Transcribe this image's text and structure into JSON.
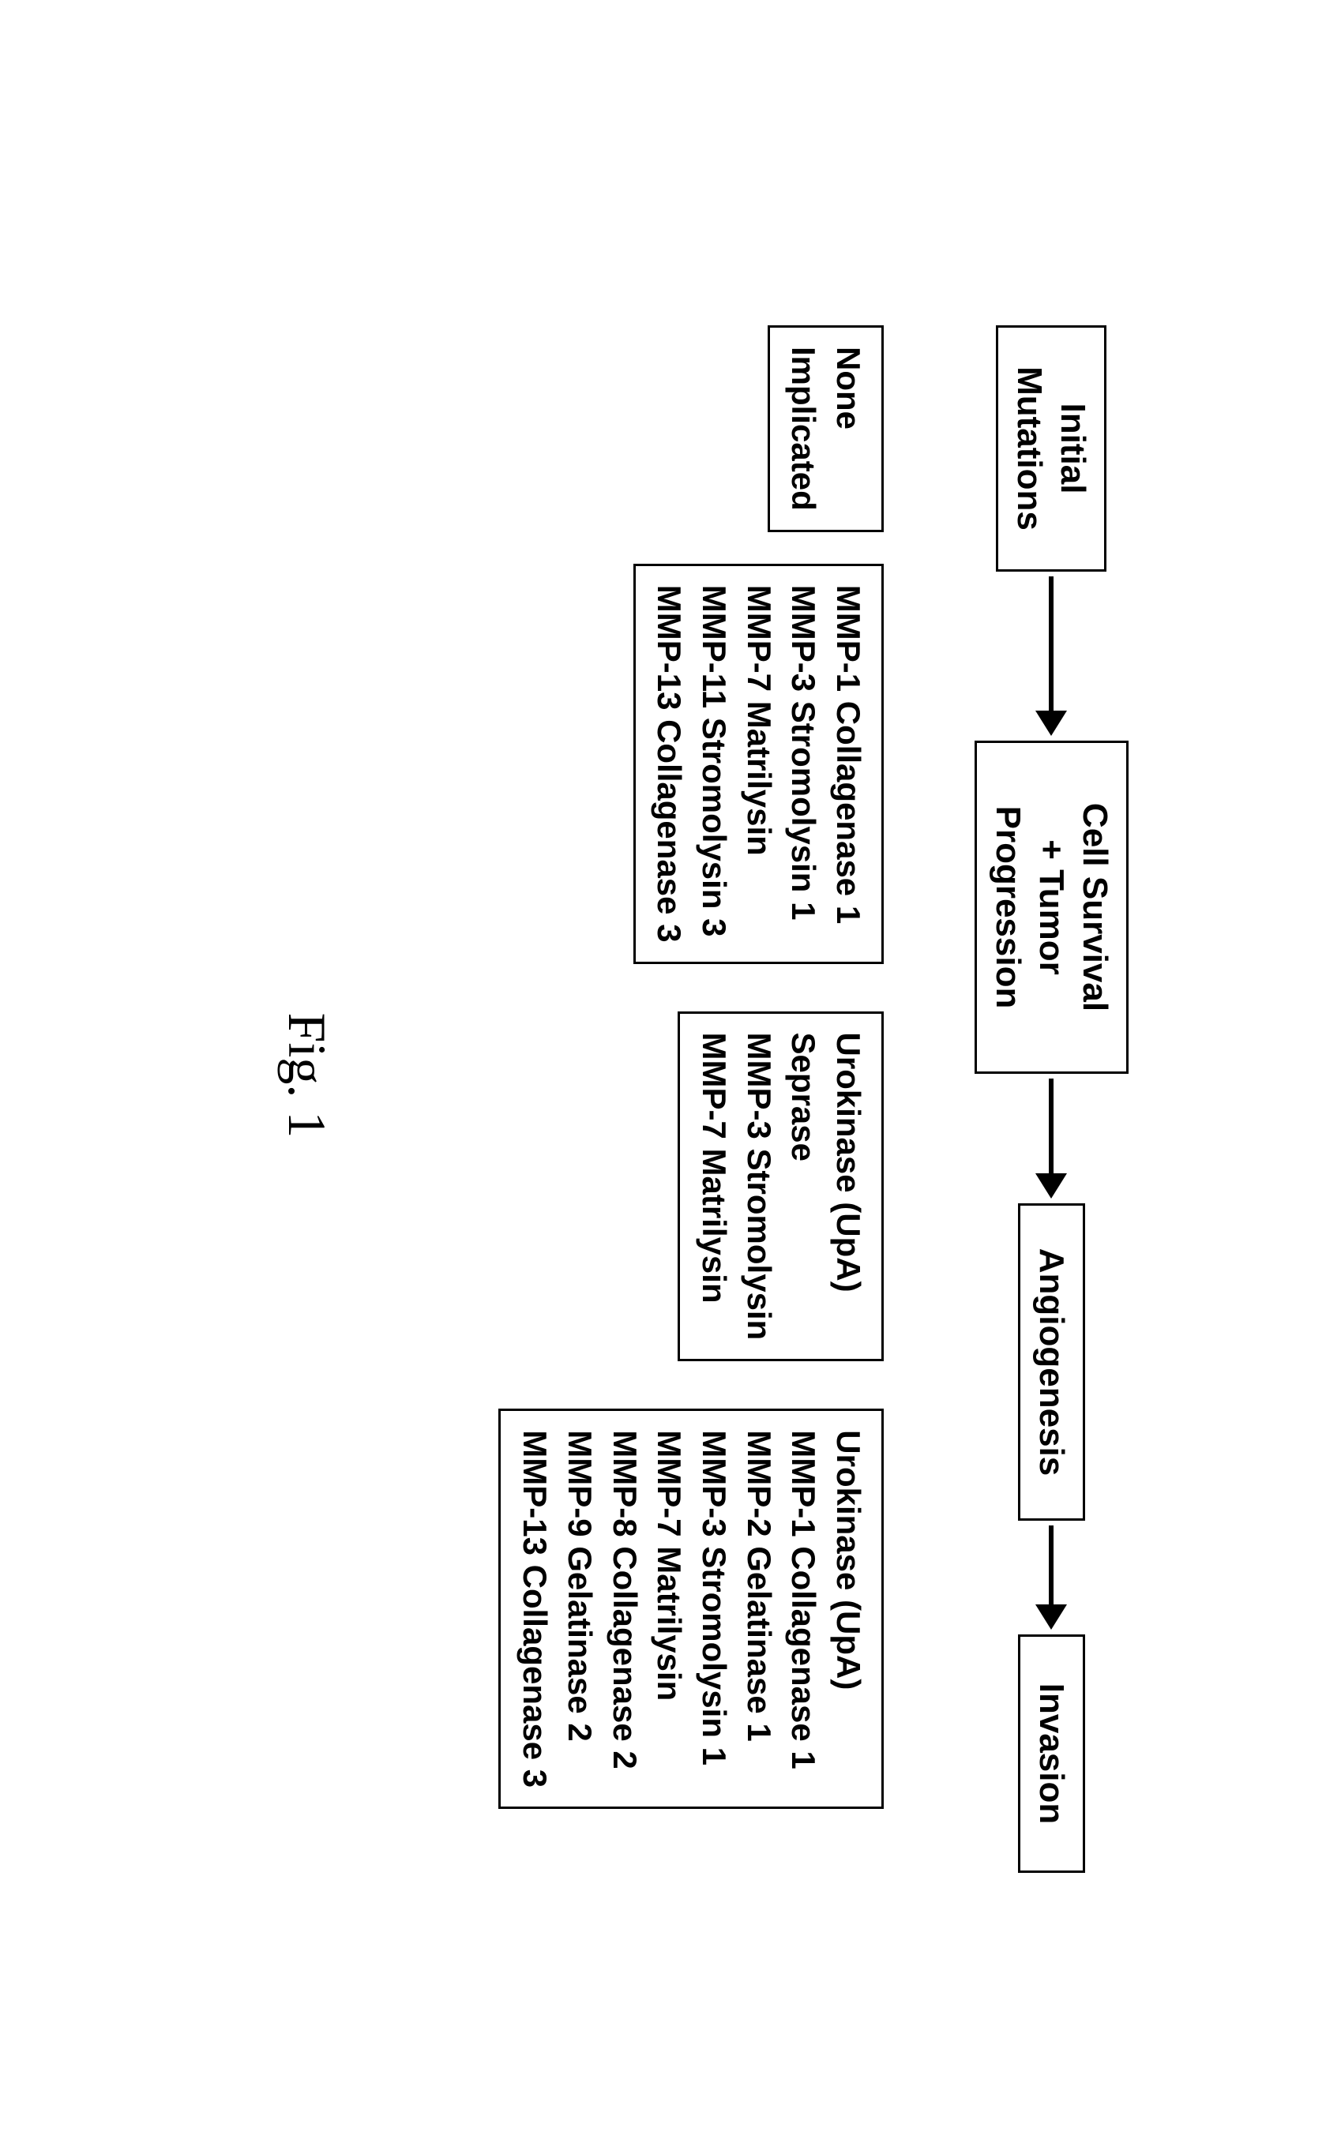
{
  "diagram": {
    "type": "flowchart",
    "background_color": "#ffffff",
    "border_color": "#000000",
    "text_color": "#000000",
    "box_border_width": 3,
    "arrow_line_height": 6,
    "arrow_head_size": 32,
    "flow_font_size": 44,
    "content_font_size": 42,
    "font_weight": "bold",
    "caption_font_size": 68,
    "caption_font_family": "Times New Roman"
  },
  "flow_boxes": {
    "box1": "Initial\nMutations",
    "box2": "Cell Survival\n+ Tumor\nProgression",
    "box3": "Angiogenesis",
    "box4": "Invasion"
  },
  "flow_box_widths": {
    "box1": 250,
    "box2": 360,
    "box3": 340,
    "box4": 240
  },
  "arrow_lengths": {
    "a1": 170,
    "a2": 120,
    "a3": 100
  },
  "content_boxes": {
    "c1": "None\nImplicated",
    "c2": "MMP-1 Collagenase 1\nMMP-3 Stromolysin 1\nMMP-7 Matrilysin\nMMP-11 Stromolysin 3\nMMP-13 Collagenase 3",
    "c3": "Urokinase (UpA)\nSeprase\nMMP-3 Stromolysin\nMMP-7 Matrilysin",
    "c4": "Urokinase (UpA)\nMMP-1 Collagenase 1\nMMP-2 Gelatinase 1\nMMP-3 Stromolysin 1\nMMP-7 Matrilysin\nMMP-8 Collagenase 2\nMMP-9 Gelatinase 2\nMMP-13 Collagenase 3"
  },
  "content_gaps": {
    "g0": 0,
    "g1": 40,
    "g2": 60,
    "g3": 60
  },
  "caption": "Fig. 1"
}
